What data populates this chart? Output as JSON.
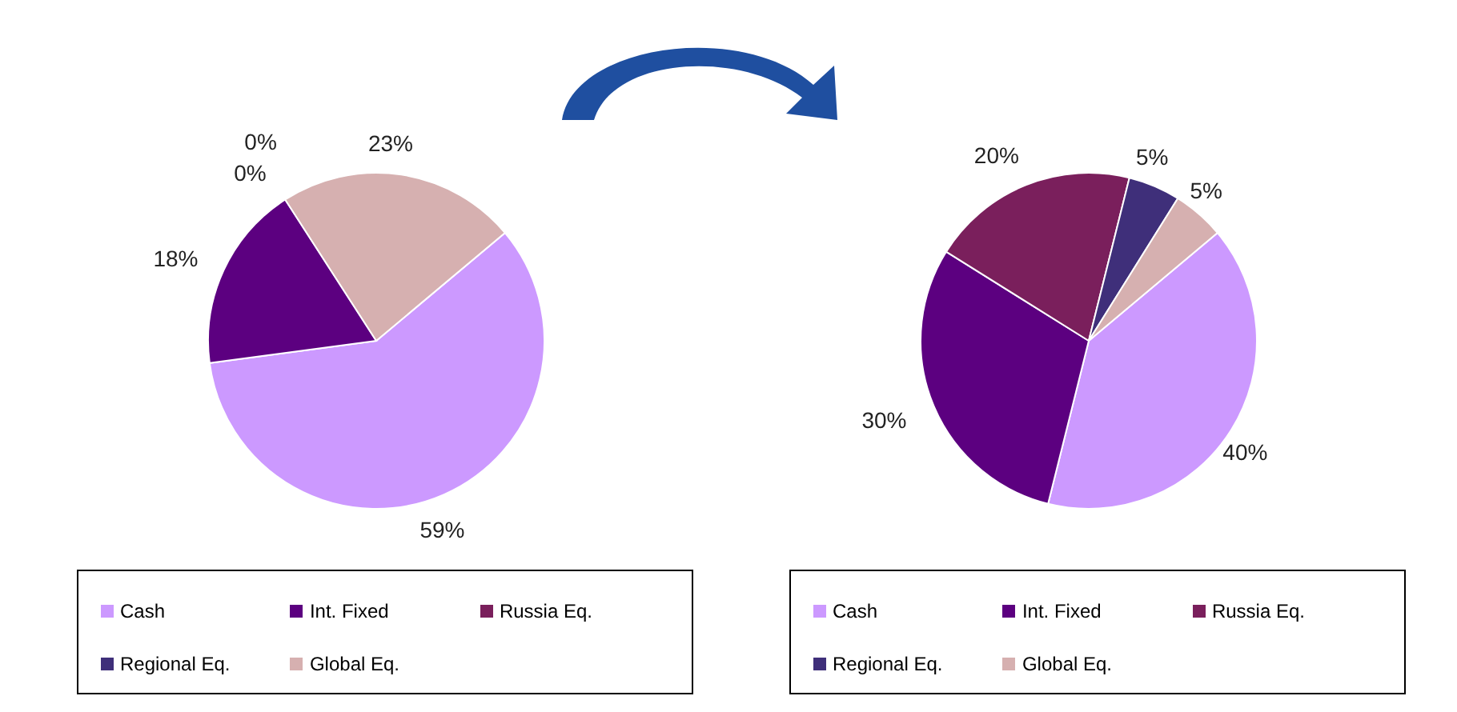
{
  "chart_data": [
    {
      "type": "pie",
      "categories": [
        "Cash",
        "Int. Fixed",
        "Russia Eq.",
        "Regional Eq.",
        "Global Eq."
      ],
      "values": [
        59,
        18,
        0,
        0,
        23
      ],
      "colors": [
        "#cc99ff",
        "#5c0080",
        "#7a1f5c",
        "#3f2f7a",
        "#d6b0b0"
      ],
      "value_labels": [
        "59%",
        "18%",
        "0%",
        "0%",
        "23%"
      ],
      "legend": "bottom"
    },
    {
      "type": "pie",
      "categories": [
        "Cash",
        "Int. Fixed",
        "Russia Eq.",
        "Regional Eq.",
        "Global Eq."
      ],
      "values": [
        40,
        30,
        20,
        5,
        5
      ],
      "colors": [
        "#cc99ff",
        "#5c0080",
        "#7a1f5c",
        "#3f2f7a",
        "#d6b0b0"
      ],
      "value_labels": [
        "40%",
        "30%",
        "20%",
        "5%",
        "5%"
      ],
      "legend": "bottom"
    }
  ]
}
